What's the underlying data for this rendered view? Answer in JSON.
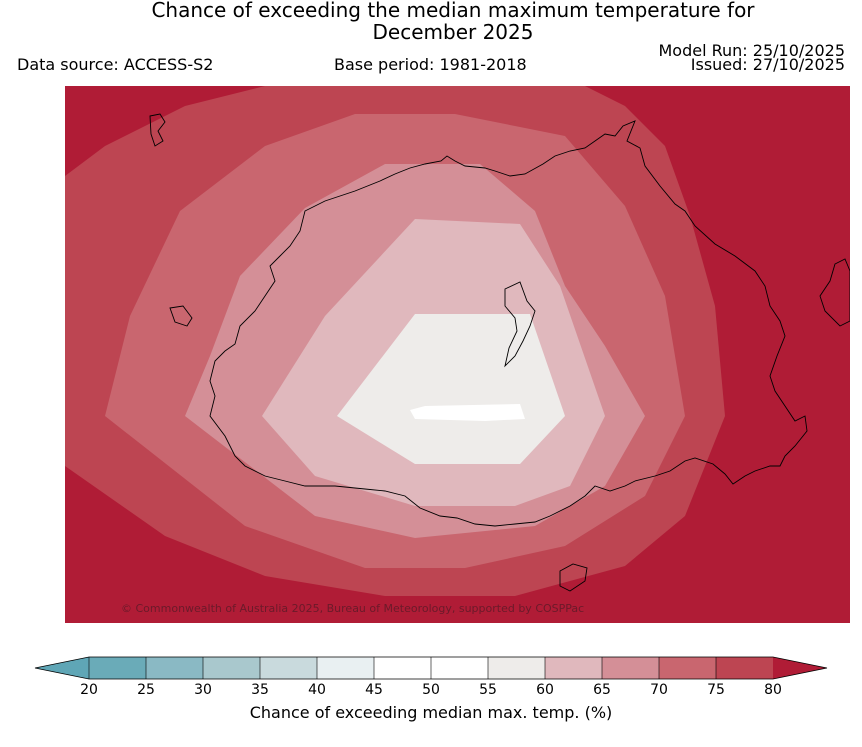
{
  "header": {
    "title_line1": "Chance of exceeding the median maximum temperature for",
    "title_line2": "December 2025",
    "data_source": "Data source: ACCESS-S2",
    "base_period": "Base period: 1981-2018",
    "model_run": "Model Run: 25/10/2025",
    "issued": "Issued: 27/10/2025"
  },
  "map": {
    "copyright": "© Commonwealth of Australia 2025, Bureau of Meteorology, supported by COSPPac",
    "overall_level": "80+ (dark red) on outer region, decreasing to 45-55 near centre"
  },
  "colorbar": {
    "label": "Chance of exceeding median max. temp. (%)",
    "ticks": [
      "20",
      "25",
      "30",
      "35",
      "40",
      "45",
      "50",
      "55",
      "60",
      "65",
      "70",
      "75",
      "80"
    ],
    "colors": [
      "#5fa6b6",
      "#6aabb8",
      "#8ab9c4",
      "#a9c8cd",
      "#c9dadd",
      "#e9f0f2",
      "#ffffff",
      "#ffffff",
      "#eeecea",
      "#e0b8bd",
      "#d48f97",
      "#c9666f",
      "#bd4552",
      "#b01c36"
    ]
  }
}
